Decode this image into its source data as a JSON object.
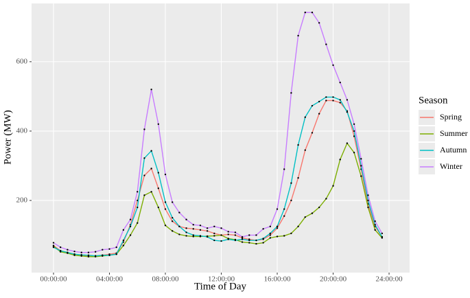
{
  "chart_data": {
    "type": "line",
    "xlabel": "Time of Day",
    "ylabel": "Power (MW)",
    "legend_title": "Season",
    "legend": "right",
    "grid": true,
    "x": [
      0,
      0.5,
      1,
      1.5,
      2,
      2.5,
      3,
      3.5,
      4,
      4.5,
      5,
      5.5,
      6,
      6.5,
      7,
      7.5,
      8,
      8.5,
      9,
      9.5,
      10,
      10.5,
      11,
      11.5,
      12,
      12.5,
      13,
      13.5,
      14,
      14.5,
      15,
      15.5,
      16,
      16.5,
      17,
      17.5,
      18,
      18.5,
      19,
      19.5,
      20,
      20.5,
      21,
      21.5,
      22,
      22.5,
      23,
      23.5
    ],
    "xlim": [
      -1.57,
      25.47
    ],
    "xticks": [
      {
        "value": 0,
        "label": "00:00:00"
      },
      {
        "value": 4,
        "label": "04:00:00"
      },
      {
        "value": 8,
        "label": "08:00:00"
      },
      {
        "value": 12,
        "label": "12:00:00"
      },
      {
        "value": 16,
        "label": "16:00:00"
      },
      {
        "value": 20,
        "label": "20:00:00"
      },
      {
        "value": 24,
        "label": "24:00:00"
      }
    ],
    "ylim": [
      -8,
      768
    ],
    "yticks": [
      200,
      400,
      600
    ],
    "series": [
      {
        "name": "Spring",
        "color": "#F8766D",
        "values": [
          70,
          55,
          50,
          45,
          42,
          40,
          40,
          42,
          45,
          48,
          80,
          130,
          200,
          272,
          292,
          235,
          175,
          140,
          125,
          120,
          118,
          115,
          112,
          105,
          100,
          102,
          100,
          92,
          88,
          85,
          88,
          100,
          120,
          155,
          200,
          265,
          345,
          395,
          450,
          488,
          488,
          482,
          458,
          385,
          290,
          190,
          125,
          95
        ]
      },
      {
        "name": "Summer",
        "color": "#7CAE00",
        "values": [
          68,
          52,
          48,
          42,
          40,
          38,
          38,
          40,
          42,
          45,
          70,
          100,
          135,
          215,
          225,
          180,
          128,
          112,
          102,
          98,
          96,
          96,
          97,
          98,
          100,
          90,
          87,
          80,
          78,
          75,
          78,
          92,
          96,
          98,
          105,
          125,
          152,
          163,
          180,
          205,
          242,
          318,
          365,
          338,
          270,
          180,
          115,
          92
        ]
      },
      {
        "name": "Autumn",
        "color": "#00BFC4",
        "values": [
          65,
          55,
          50,
          45,
          43,
          42,
          40,
          42,
          42,
          45,
          85,
          125,
          180,
          322,
          343,
          280,
          195,
          150,
          125,
          108,
          100,
          98,
          95,
          85,
          83,
          88,
          85,
          88,
          85,
          85,
          90,
          105,
          125,
          175,
          250,
          360,
          440,
          473,
          485,
          498,
          498,
          490,
          455,
          400,
          300,
          200,
          130,
          95
        ]
      },
      {
        "name": "Winter",
        "color": "#C77CFF",
        "values": [
          78,
          65,
          58,
          53,
          50,
          50,
          52,
          58,
          60,
          65,
          115,
          145,
          225,
          405,
          520,
          420,
          275,
          195,
          165,
          145,
          130,
          128,
          120,
          125,
          120,
          110,
          108,
          95,
          100,
          100,
          118,
          125,
          175,
          290,
          510,
          675,
          742,
          742,
          712,
          650,
          590,
          540,
          490,
          420,
          320,
          215,
          140,
          105
        ]
      }
    ]
  }
}
